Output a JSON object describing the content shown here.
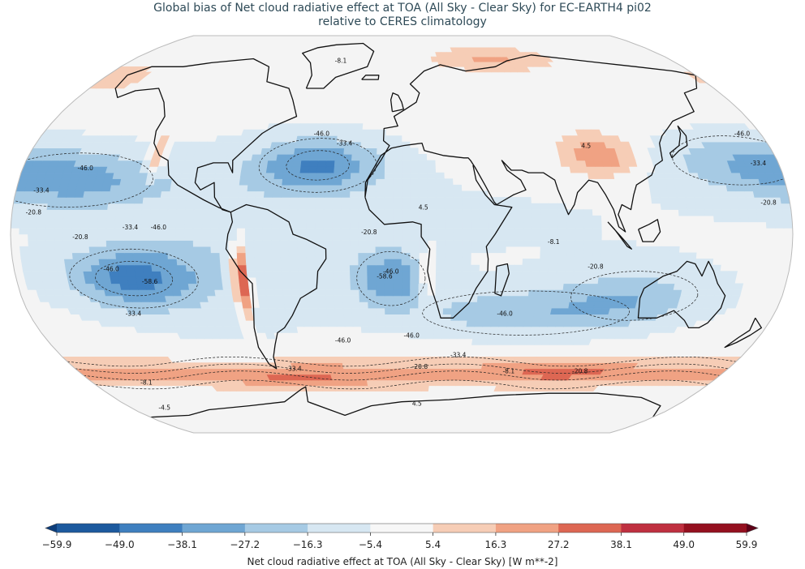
{
  "title": {
    "line1": "Global bias of Net cloud radiative effect at TOA (All Sky - Clear Sky) for EC-EARTH4 pi02",
    "line2": "relative to CERES climatology"
  },
  "colorbar": {
    "label": "Net cloud radiative effect at TOA (All Sky - Clear Sky) [W m**-2]",
    "ticks": [
      "−59.9",
      "−49.0",
      "−38.1",
      "−27.2",
      "−16.3",
      "−5.4",
      "5.4",
      "16.3",
      "27.2",
      "38.1",
      "49.0",
      "59.9"
    ],
    "colors": [
      "#0d3d7a",
      "#1d5a9e",
      "#3f7fbf",
      "#6fa6d3",
      "#a6cae4",
      "#d7e7f2",
      "#f7f7f7",
      "#f6cdb6",
      "#f0a283",
      "#dd6753",
      "#bf3040",
      "#94101f",
      "#5e0218"
    ]
  },
  "map": {
    "projection": "robinson",
    "contour_labels": [
      {
        "text": "-46.0",
        "lon": -150,
        "lat": 26
      },
      {
        "text": "-33.4",
        "lon": -168,
        "lat": 17
      },
      {
        "text": "-20.8",
        "lon": -170,
        "lat": 8
      },
      {
        "text": "-20.8",
        "lon": -148,
        "lat": -2
      },
      {
        "text": "-33.4",
        "lon": -125,
        "lat": 2
      },
      {
        "text": "-46.0",
        "lon": -112,
        "lat": 2
      },
      {
        "text": "-46.0",
        "lon": -135,
        "lat": -15
      },
      {
        "text": "-58.6",
        "lon": -118,
        "lat": -20
      },
      {
        "text": "-33.4",
        "lon": -130,
        "lat": -33
      },
      {
        "text": "-46.0",
        "lon": -40,
        "lat": 40
      },
      {
        "text": "-33.4",
        "lon": -28,
        "lat": 36
      },
      {
        "text": "-20.8",
        "lon": -15,
        "lat": 0
      },
      {
        "text": "-46.0",
        "lon": -5,
        "lat": -16
      },
      {
        "text": "-58.6",
        "lon": -8,
        "lat": -18
      },
      {
        "text": "-46.0",
        "lon": -30,
        "lat": -44
      },
      {
        "text": "-46.0",
        "lon": 5,
        "lat": -42
      },
      {
        "text": "-46.0",
        "lon": 50,
        "lat": -33
      },
      {
        "text": "-20.8",
        "lon": 90,
        "lat": -14
      },
      {
        "text": "-8.1",
        "lon": 70,
        "lat": -4
      },
      {
        "text": "-33.4",
        "lon": 30,
        "lat": -50
      },
      {
        "text": "-20.8",
        "lon": 10,
        "lat": -55
      },
      {
        "text": "-8.1",
        "lon": 60,
        "lat": -57
      },
      {
        "text": "-20.8",
        "lon": 100,
        "lat": -57
      },
      {
        "text": "-33.4",
        "lon": -60,
        "lat": -56
      },
      {
        "text": "-8.1",
        "lon": -150,
        "lat": -62
      },
      {
        "text": "-46.0",
        "lon": 170,
        "lat": 40
      },
      {
        "text": "-33.4",
        "lon": 170,
        "lat": 28
      },
      {
        "text": "-20.8",
        "lon": 170,
        "lat": 12
      },
      {
        "text": "4.5",
        "lon": 90,
        "lat": 35
      },
      {
        "text": "4.5",
        "lon": 10,
        "lat": 10
      },
      {
        "text": "-8.1",
        "lon": -40,
        "lat": 72
      },
      {
        "text": "4.5",
        "lon": 10,
        "lat": -72
      },
      {
        "text": "-4.5",
        "lon": -160,
        "lat": -74
      }
    ]
  }
}
